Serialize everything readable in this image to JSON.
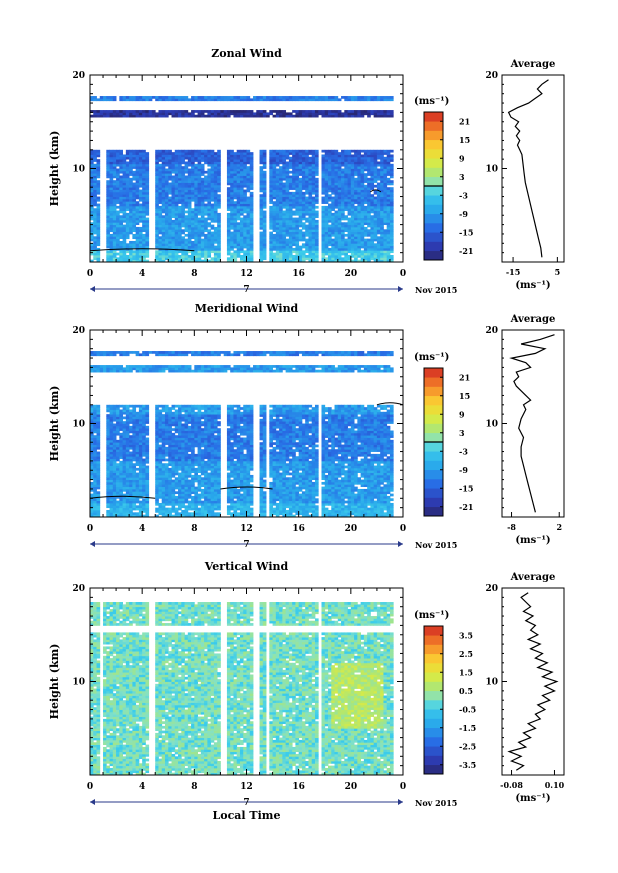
{
  "chart_data": [
    {
      "type": "heatmap",
      "title": "Zonal Wind",
      "ylabel": "Height (km)",
      "xticks": [
        "0",
        "4",
        "8",
        "12",
        "16",
        "20",
        "0"
      ],
      "ylim": [
        0,
        20
      ],
      "yticks": [
        "10",
        "20"
      ],
      "date_label": "7",
      "date_suffix": "Nov 2015",
      "colorbar": {
        "unit": "(ms⁻¹)",
        "ticks": [
          "21",
          "15",
          "9",
          "3",
          "-3",
          "-9",
          "-15",
          "-21"
        ],
        "range": [
          -24,
          24
        ],
        "zero_line": true
      },
      "profile": {
        "title": "Average",
        "xticks": [
          "-15",
          "5"
        ],
        "xlim": [
          -20,
          8
        ],
        "xlabel": "(ms⁻¹)",
        "points": [
          [
            -2,
            0.5
          ],
          [
            -2.5,
            1.5
          ],
          [
            -3.5,
            2.5
          ],
          [
            -4.5,
            3.5
          ],
          [
            -5.5,
            4.5
          ],
          [
            -6.5,
            5.5
          ],
          [
            -7.5,
            6.5
          ],
          [
            -8.5,
            7.5
          ],
          [
            -9.5,
            8.5
          ],
          [
            -10,
            9.5
          ],
          [
            -10.5,
            10.5
          ],
          [
            -11,
            11.5
          ],
          [
            -12,
            12
          ],
          [
            -13,
            12.5
          ],
          [
            -12,
            13
          ],
          [
            -13.5,
            13.5
          ],
          [
            -12,
            14
          ],
          [
            -14,
            14.5
          ],
          [
            -12.5,
            15
          ],
          [
            -16,
            15.5
          ],
          [
            -17,
            16
          ],
          [
            -13,
            16.5
          ],
          [
            -8,
            17
          ],
          [
            -5,
            17.5
          ],
          [
            -2,
            18
          ],
          [
            -4,
            18.5
          ],
          [
            -2,
            19
          ],
          [
            1,
            19.5
          ]
        ]
      },
      "regions": [
        {
          "t0": 0,
          "t1": 24,
          "h0": 0,
          "h1": 1.2,
          "v": -3
        },
        {
          "t0": 0,
          "t1": 24,
          "h0": 1.2,
          "h1": 6,
          "v": -9
        },
        {
          "t0": 0,
          "t1": 24,
          "h0": 6,
          "h1": 10.5,
          "v": -12
        },
        {
          "t0": 0,
          "t1": 24,
          "h0": 10.5,
          "h1": 12,
          "v": -15
        },
        {
          "t0": 0,
          "t1": 24,
          "h0": 15.5,
          "h1": 16.3,
          "v": -21
        },
        {
          "t0": 0,
          "t1": 24,
          "h0": 17.3,
          "h1": 17.8,
          "v": -12
        }
      ],
      "gaps": [
        {
          "t0": 0,
          "t1": 24,
          "h0": 12,
          "h1": 15.5
        },
        {
          "t0": 0,
          "t1": 24,
          "h0": 16.3,
          "h1": 17.3
        },
        {
          "t0": 0,
          "t1": 24,
          "h0": 17.8,
          "h1": 20
        },
        {
          "t0": 0.8,
          "t1": 1.2,
          "h0": 0,
          "h1": 12
        },
        {
          "t0": 4.6,
          "t1": 5.0,
          "h0": 0,
          "h1": 12
        },
        {
          "t0": 10.0,
          "t1": 10.5,
          "h0": 0,
          "h1": 12
        },
        {
          "t0": 12.6,
          "t1": 12.9,
          "h0": 0,
          "h1": 12
        },
        {
          "t0": 13.5,
          "t1": 13.8,
          "h0": 0,
          "h1": 12
        },
        {
          "t0": 17.5,
          "t1": 17.8,
          "h0": 0,
          "h1": 12
        },
        {
          "t0": 23.2,
          "t1": 24,
          "h0": 0,
          "h1": 20
        }
      ],
      "contours": [
        {
          "t0": 0,
          "t1": 8,
          "h": 1.2
        },
        {
          "t0": 21.5,
          "t1": 22.3,
          "h": 7.5
        }
      ]
    },
    {
      "type": "heatmap",
      "title": "Meridional Wind",
      "ylabel": "Height (km)",
      "xticks": [
        "0",
        "4",
        "8",
        "12",
        "16",
        "20",
        "0"
      ],
      "ylim": [
        0,
        20
      ],
      "yticks": [
        "10",
        "20"
      ],
      "date_label": "7",
      "date_suffix": "Nov 2015",
      "colorbar": {
        "unit": "(ms⁻¹)",
        "ticks": [
          "21",
          "15",
          "9",
          "3",
          "-3",
          "-9",
          "-15",
          "-21"
        ],
        "range": [
          -24,
          24
        ],
        "zero_line": true
      },
      "profile": {
        "title": "Average",
        "xticks": [
          "-8",
          "2"
        ],
        "xlim": [
          -10,
          3
        ],
        "xlabel": "(ms⁻¹)",
        "points": [
          [
            -3,
            0.5
          ],
          [
            -3.5,
            1.5
          ],
          [
            -4,
            2.5
          ],
          [
            -4.5,
            3.5
          ],
          [
            -5,
            4.5
          ],
          [
            -5.5,
            5.5
          ],
          [
            -6,
            6.5
          ],
          [
            -6,
            7.5
          ],
          [
            -5.5,
            8.5
          ],
          [
            -6.5,
            9.5
          ],
          [
            -6,
            10.5
          ],
          [
            -5,
            11.5
          ],
          [
            -5.5,
            12
          ],
          [
            -4,
            12.5
          ],
          [
            -5,
            13
          ],
          [
            -6,
            13.5
          ],
          [
            -7,
            14
          ],
          [
            -7.5,
            14.5
          ],
          [
            -6.5,
            15
          ],
          [
            -7,
            15.5
          ],
          [
            -4,
            16
          ],
          [
            -5,
            16.5
          ],
          [
            -8,
            17
          ],
          [
            -3,
            17.5
          ],
          [
            -1,
            18
          ],
          [
            -6,
            18.5
          ],
          [
            -2,
            19
          ],
          [
            1,
            19.5
          ]
        ]
      },
      "regions": [
        {
          "t0": 0,
          "t1": 24,
          "h0": 0,
          "h1": 1.5,
          "v": -6
        },
        {
          "t0": 0,
          "t1": 24,
          "h0": 1.5,
          "h1": 6,
          "v": -9
        },
        {
          "t0": 0,
          "t1": 24,
          "h0": 6,
          "h1": 11,
          "v": -12
        },
        {
          "t0": 0,
          "t1": 24,
          "h0": 11,
          "h1": 12,
          "v": -9
        },
        {
          "t0": 0,
          "t1": 24,
          "h0": 15.5,
          "h1": 16.3,
          "v": -9
        },
        {
          "t0": 0,
          "t1": 24,
          "h0": 17.3,
          "h1": 17.8,
          "v": -12
        }
      ],
      "gaps": [
        {
          "t0": 0,
          "t1": 24,
          "h0": 12,
          "h1": 15.5
        },
        {
          "t0": 0,
          "t1": 24,
          "h0": 16.3,
          "h1": 17.3
        },
        {
          "t0": 0,
          "t1": 24,
          "h0": 17.8,
          "h1": 20
        },
        {
          "t0": 0.8,
          "t1": 1.2,
          "h0": 0,
          "h1": 12
        },
        {
          "t0": 4.6,
          "t1": 5.0,
          "h0": 0,
          "h1": 12
        },
        {
          "t0": 10.0,
          "t1": 10.5,
          "h0": 0,
          "h1": 12
        },
        {
          "t0": 12.6,
          "t1": 12.9,
          "h0": 0,
          "h1": 12
        },
        {
          "t0": 13.5,
          "t1": 13.8,
          "h0": 0,
          "h1": 12
        },
        {
          "t0": 17.5,
          "t1": 17.8,
          "h0": 0,
          "h1": 12
        },
        {
          "t0": 23.2,
          "t1": 24,
          "h0": 0,
          "h1": 20
        }
      ],
      "contours": [
        {
          "t0": 0,
          "t1": 5,
          "h": 2.0
        },
        {
          "t0": 10,
          "t1": 14,
          "h": 3.0
        },
        {
          "t0": 22,
          "t1": 24,
          "h": 12.0
        }
      ]
    },
    {
      "type": "heatmap",
      "title": "Vertical Wind",
      "ylabel": "Height (km)",
      "xlabel": "Local Time",
      "xticks": [
        "0",
        "4",
        "8",
        "12",
        "16",
        "20",
        "0"
      ],
      "ylim": [
        0,
        20
      ],
      "yticks": [
        "10",
        "20"
      ],
      "date_label": "7",
      "date_suffix": "Nov 2015",
      "colorbar": {
        "unit": "(ms⁻¹)",
        "ticks": [
          "3.5",
          "2.5",
          "1.5",
          "0.5",
          "-0.5",
          "-1.5",
          "-2.5",
          "-3.5"
        ],
        "range": [
          -4,
          4
        ],
        "zero_line": false
      },
      "profile": {
        "title": "Average",
        "xticks": [
          "-0.08",
          "0.10"
        ],
        "xlim": [
          -0.12,
          0.14
        ],
        "xlabel": "(ms⁻¹)",
        "points": [
          [
            -0.06,
            0.5
          ],
          [
            -0.03,
            1
          ],
          [
            -0.08,
            1.5
          ],
          [
            -0.04,
            2
          ],
          [
            -0.09,
            2.5
          ],
          [
            -0.02,
            3
          ],
          [
            -0.05,
            3.5
          ],
          [
            0.0,
            4
          ],
          [
            -0.03,
            4.5
          ],
          [
            0.02,
            5
          ],
          [
            -0.01,
            5.5
          ],
          [
            0.04,
            6
          ],
          [
            0.02,
            6.5
          ],
          [
            0.06,
            7
          ],
          [
            0.03,
            7.5
          ],
          [
            0.08,
            8
          ],
          [
            0.05,
            8.5
          ],
          [
            0.1,
            9
          ],
          [
            0.06,
            9.5
          ],
          [
            0.11,
            10
          ],
          [
            0.05,
            10.5
          ],
          [
            0.09,
            11
          ],
          [
            0.03,
            11.5
          ],
          [
            0.07,
            12
          ],
          [
            0.02,
            12.5
          ],
          [
            0.05,
            13
          ],
          [
            0.0,
            13.5
          ],
          [
            0.04,
            14
          ],
          [
            -0.01,
            14.5
          ],
          [
            0.03,
            15
          ],
          [
            0.0,
            15.5
          ],
          [
            0.02,
            16
          ],
          [
            -0.02,
            16.5
          ],
          [
            0.01,
            17
          ],
          [
            -0.03,
            17.5
          ],
          [
            0.0,
            18
          ],
          [
            -0.02,
            18.5
          ],
          [
            -0.04,
            19
          ],
          [
            -0.01,
            19.5
          ]
        ]
      },
      "regions": [
        {
          "t0": 0,
          "t1": 24,
          "h0": 0,
          "h1": 18.5,
          "v": 0
        },
        {
          "t0": 18.5,
          "t1": 22.5,
          "h0": 5,
          "h1": 12,
          "v": 0.8
        }
      ],
      "gaps": [
        {
          "t0": 0,
          "t1": 24,
          "h0": 15.3,
          "h1": 15.9
        },
        {
          "t0": 0,
          "t1": 24,
          "h0": 18.5,
          "h1": 20
        },
        {
          "t0": 0.8,
          "t1": 1.1,
          "h0": 0,
          "h1": 18.5
        },
        {
          "t0": 4.6,
          "t1": 5.0,
          "h0": 0,
          "h1": 18.5
        },
        {
          "t0": 10.0,
          "t1": 10.5,
          "h0": 0,
          "h1": 18.5
        },
        {
          "t0": 12.6,
          "t1": 12.9,
          "h0": 0,
          "h1": 18.5
        },
        {
          "t0": 13.5,
          "t1": 13.8,
          "h0": 0,
          "h1": 18.5
        },
        {
          "t0": 17.5,
          "t1": 17.8,
          "h0": 0,
          "h1": 18.5
        },
        {
          "t0": 23.2,
          "t1": 24,
          "h0": 0,
          "h1": 20
        }
      ],
      "contours": []
    }
  ]
}
